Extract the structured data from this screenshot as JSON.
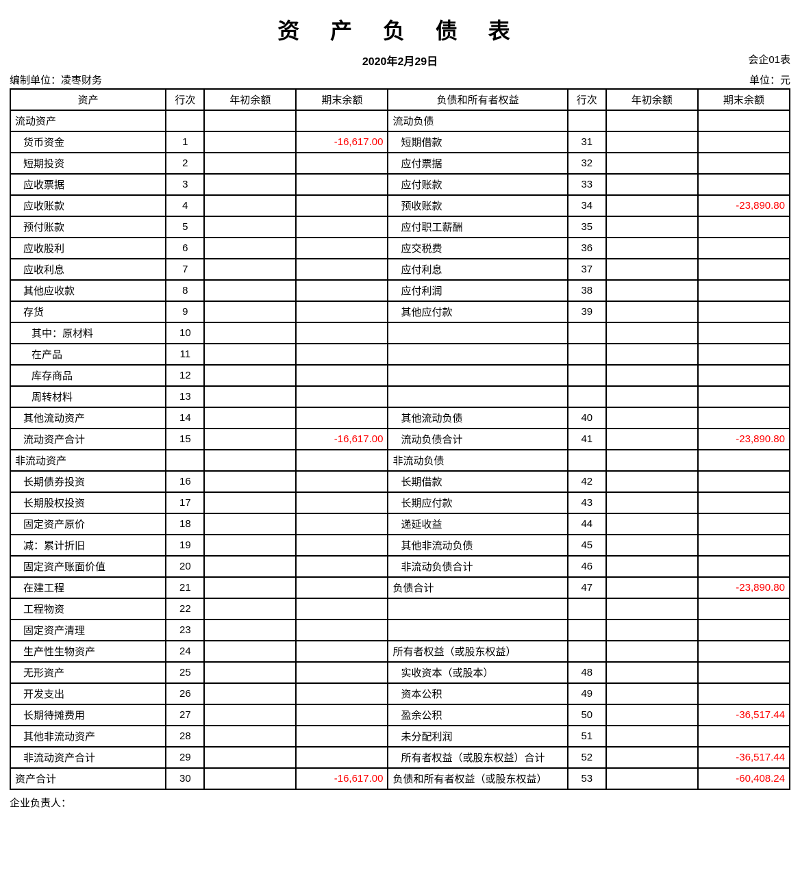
{
  "title": "资 产 负 债 表",
  "date": "2020年2月29日",
  "form_number": "会企01表",
  "compiler_label": "编制单位：凌枣财务",
  "unit_label": "单位：元",
  "footer": "企业负责人：",
  "headers": {
    "assets": "资产",
    "row_l": "行次",
    "opening_l": "年初余额",
    "ending_l": "期末余额",
    "liab": "负债和所有者权益",
    "row_r": "行次",
    "opening_r": "年初余额",
    "ending_r": "期末余额"
  },
  "rows": [
    {
      "l_label": "流动资产",
      "r_label": "流动负债"
    },
    {
      "l_label": "货币资金",
      "l_indent": 1,
      "l_row": "1",
      "l_end": "-16,617.00",
      "l_end_neg": true,
      "r_label": "短期借款",
      "r_indent": 1,
      "r_row": "31"
    },
    {
      "l_label": "短期投资",
      "l_indent": 1,
      "l_row": "2",
      "r_label": "应付票据",
      "r_indent": 1,
      "r_row": "32"
    },
    {
      "l_label": "应收票据",
      "l_indent": 1,
      "l_row": "3",
      "r_label": "应付账款",
      "r_indent": 1,
      "r_row": "33"
    },
    {
      "l_label": "应收账款",
      "l_indent": 1,
      "l_row": "4",
      "r_label": "预收账款",
      "r_indent": 1,
      "r_row": "34",
      "r_end": "-23,890.80",
      "r_end_neg": true
    },
    {
      "l_label": "预付账款",
      "l_indent": 1,
      "l_row": "5",
      "r_label": "应付职工薪酬",
      "r_indent": 1,
      "r_row": "35"
    },
    {
      "l_label": "应收股利",
      "l_indent": 1,
      "l_row": "6",
      "r_label": "应交税费",
      "r_indent": 1,
      "r_row": "36"
    },
    {
      "l_label": "应收利息",
      "l_indent": 1,
      "l_row": "7",
      "r_label": "应付利息",
      "r_indent": 1,
      "r_row": "37"
    },
    {
      "l_label": "其他应收款",
      "l_indent": 1,
      "l_row": "8",
      "r_label": "应付利润",
      "r_indent": 1,
      "r_row": "38"
    },
    {
      "l_label": "存货",
      "l_indent": 1,
      "l_row": "9",
      "r_label": "其他应付款",
      "r_indent": 1,
      "r_row": "39"
    },
    {
      "l_label": "其中：原材料",
      "l_indent": 2,
      "l_row": "10"
    },
    {
      "l_label": "在产品",
      "l_indent": 2,
      "l_row": "11"
    },
    {
      "l_label": "库存商品",
      "l_indent": 2,
      "l_row": "12"
    },
    {
      "l_label": "周转材料",
      "l_indent": 2,
      "l_row": "13"
    },
    {
      "l_label": "其他流动资产",
      "l_indent": 1,
      "l_row": "14",
      "r_label": "其他流动负债",
      "r_indent": 1,
      "r_row": "40"
    },
    {
      "l_label": "流动资产合计",
      "l_indent": 1,
      "l_row": "15",
      "l_end": "-16,617.00",
      "l_end_neg": true,
      "r_label": "流动负债合计",
      "r_indent": 1,
      "r_row": "41",
      "r_end": "-23,890.80",
      "r_end_neg": true
    },
    {
      "l_label": "非流动资产",
      "r_label": "非流动负债"
    },
    {
      "l_label": "长期债券投资",
      "l_indent": 1,
      "l_row": "16",
      "r_label": "长期借款",
      "r_indent": 1,
      "r_row": "42"
    },
    {
      "l_label": "长期股权投资",
      "l_indent": 1,
      "l_row": "17",
      "r_label": "长期应付款",
      "r_indent": 1,
      "r_row": "43"
    },
    {
      "l_label": "固定资产原价",
      "l_indent": 1,
      "l_row": "18",
      "r_label": "递延收益",
      "r_indent": 1,
      "r_row": "44"
    },
    {
      "l_label": "减：累计折旧",
      "l_indent": 1,
      "l_row": "19",
      "r_label": "其他非流动负债",
      "r_indent": 1,
      "r_row": "45"
    },
    {
      "l_label": "固定资产账面价值",
      "l_indent": 1,
      "l_row": "20",
      "r_label": "非流动负债合计",
      "r_indent": 1,
      "r_row": "46"
    },
    {
      "l_label": "在建工程",
      "l_indent": 1,
      "l_row": "21",
      "r_label": "负债合计",
      "r_row": "47",
      "r_end": "-23,890.80",
      "r_end_neg": true
    },
    {
      "l_label": "工程物资",
      "l_indent": 1,
      "l_row": "22"
    },
    {
      "l_label": "固定资产清理",
      "l_indent": 1,
      "l_row": "23"
    },
    {
      "l_label": "生产性生物资产",
      "l_indent": 1,
      "l_row": "24",
      "r_label": "所有者权益（或股东权益）"
    },
    {
      "l_label": "无形资产",
      "l_indent": 1,
      "l_row": "25",
      "r_label": "实收资本（或股本）",
      "r_indent": 1,
      "r_row": "48"
    },
    {
      "l_label": "开发支出",
      "l_indent": 1,
      "l_row": "26",
      "r_label": "资本公积",
      "r_indent": 1,
      "r_row": "49"
    },
    {
      "l_label": "长期待摊费用",
      "l_indent": 1,
      "l_row": "27",
      "r_label": "盈余公积",
      "r_indent": 1,
      "r_row": "50",
      "r_end": "-36,517.44",
      "r_end_neg": true
    },
    {
      "l_label": "其他非流动资产",
      "l_indent": 1,
      "l_row": "28",
      "r_label": "未分配利润",
      "r_indent": 1,
      "r_row": "51"
    },
    {
      "l_label": "非流动资产合计",
      "l_indent": 1,
      "l_row": "29",
      "r_label": "所有者权益（或股东权益）合计",
      "r_indent": 1,
      "r_row": "52",
      "r_end": "-36,517.44",
      "r_end_neg": true
    },
    {
      "l_label": "资产合计",
      "l_row": "30",
      "l_end": "-16,617.00",
      "l_end_neg": true,
      "r_label": "负债和所有者权益（或股东权益）",
      "r_row": "53",
      "r_end": "-60,408.24",
      "r_end_neg": true
    }
  ]
}
